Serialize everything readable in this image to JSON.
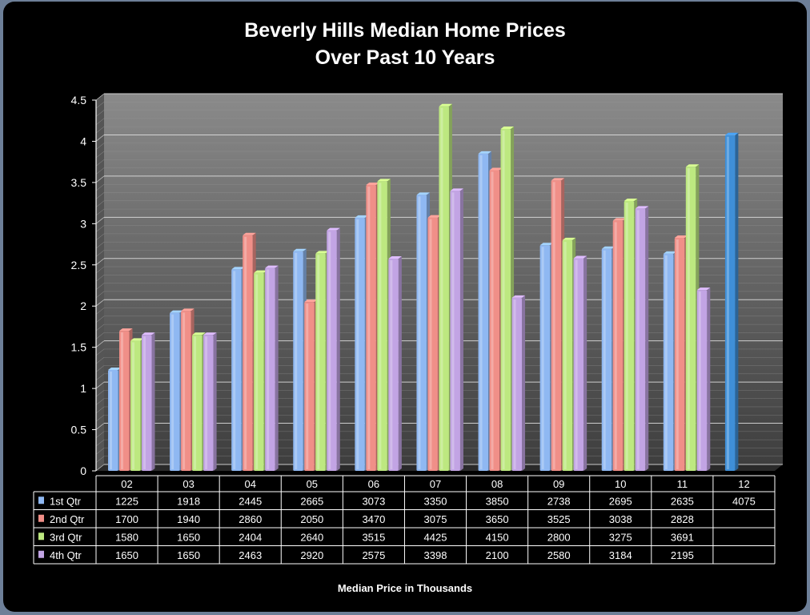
{
  "chart_data": {
    "type": "bar",
    "title": "Beverly Hills Median Home Prices",
    "subtitle": "Over Past 10 Years",
    "xlabel": "Median Price in Thousands",
    "ylabel": "",
    "ylim": [
      0,
      4.5
    ],
    "yticks": [
      "0",
      "0.5",
      "1",
      "1.5",
      "2",
      "2.5",
      "3",
      "3.5",
      "4",
      "4.5"
    ],
    "categories": [
      "02",
      "03",
      "04",
      "05",
      "06",
      "07",
      "08",
      "09",
      "10",
      "11",
      "12"
    ],
    "series": [
      {
        "name": "1st Qtr",
        "color": "#8fb8f2",
        "values": [
          1225,
          1918,
          2445,
          2665,
          3073,
          3350,
          3850,
          2738,
          2695,
          2635,
          4075
        ]
      },
      {
        "name": "2nd Qtr",
        "color": "#f08f88",
        "values": [
          1700,
          1940,
          2860,
          2050,
          3470,
          3075,
          3650,
          3525,
          3038,
          2828,
          null
        ]
      },
      {
        "name": "3rd Qtr",
        "color": "#bde880",
        "values": [
          1580,
          1650,
          2404,
          2640,
          3515,
          4425,
          4150,
          2800,
          3275,
          3691,
          null
        ]
      },
      {
        "name": "4th Qtr",
        "color": "#c2a4e4",
        "values": [
          1650,
          1650,
          2463,
          2920,
          2575,
          3398,
          2100,
          2580,
          3184,
          2195,
          null
        ]
      }
    ],
    "last_bar_color": "#3f8fd8",
    "legend": "data-table",
    "grid": true
  }
}
